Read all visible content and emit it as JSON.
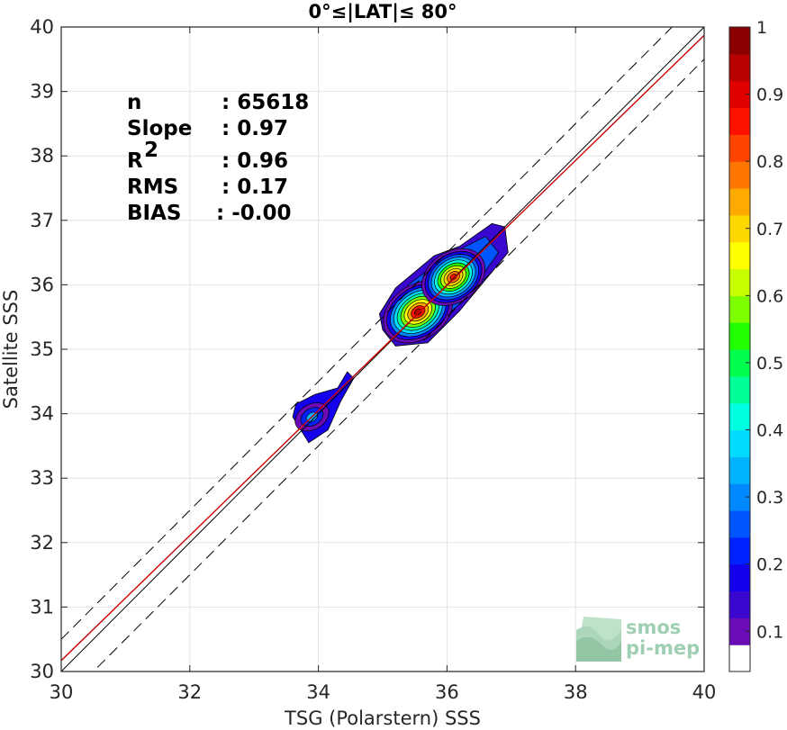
{
  "chart_data": {
    "type": "heatmap",
    "title": "0°≤|LAT|≤ 80°",
    "xlabel": "TSG (Polarstern) SSS",
    "ylabel": "Satellite SSS",
    "xlim": [
      30,
      40
    ],
    "ylim": [
      30,
      40
    ],
    "xticks": [
      "30",
      "32",
      "34",
      "36",
      "38",
      "40"
    ],
    "yticks": [
      "30",
      "31",
      "32",
      "33",
      "34",
      "35",
      "36",
      "37",
      "38",
      "39",
      "40"
    ],
    "grid": true,
    "stats": [
      {
        "label": "n",
        "value": ": 65618"
      },
      {
        "label": "Slope",
        "value": ": 0.97"
      },
      {
        "label": "R",
        "sup": "2",
        "value": ": 0.96"
      },
      {
        "label": "RMS",
        "value": ": 0.17"
      },
      {
        "label": "BIAS",
        "value": ": -0.00"
      }
    ],
    "lines": {
      "identity": {
        "slope": 1,
        "intercept": 0,
        "color": "#000000"
      },
      "offset_plus": {
        "slope": 1,
        "intercept": 0.5,
        "style": "dashed",
        "color": "#000000"
      },
      "offset_minus": {
        "slope": 1,
        "intercept": -0.5,
        "style": "dashed",
        "color": "#000000"
      },
      "fit": {
        "slope": 0.97,
        "intercept": 1.07,
        "color": "#cc0000"
      }
    },
    "density_peaks": [
      {
        "x": 35.6,
        "y": 35.55,
        "value": 1.0
      },
      {
        "x": 36.1,
        "y": 36.15,
        "value": 0.95
      },
      {
        "x": 33.9,
        "y": 33.9,
        "value": 0.3
      }
    ],
    "colorbar": {
      "min": 0,
      "max": 1,
      "ticks": [
        "0.1",
        "0.2",
        "0.3",
        "0.4",
        "0.5",
        "0.6",
        "0.7",
        "0.8",
        "0.9",
        "1"
      ],
      "colors": [
        "#ffffff",
        "#6a0bb5",
        "#3a07cf",
        "#1500ee",
        "#0022ff",
        "#0055ff",
        "#0088ff",
        "#00b3ff",
        "#00dcff",
        "#00ffe0",
        "#00ff99",
        "#00ff4d",
        "#22ff00",
        "#7dff00",
        "#c8ff00",
        "#ffff00",
        "#ffd700",
        "#ffaa00",
        "#ff7700",
        "#ff4400",
        "#ff1100",
        "#e00000",
        "#b80000",
        "#8a0000"
      ]
    },
    "watermark": [
      "smos",
      "pi-mep"
    ]
  }
}
